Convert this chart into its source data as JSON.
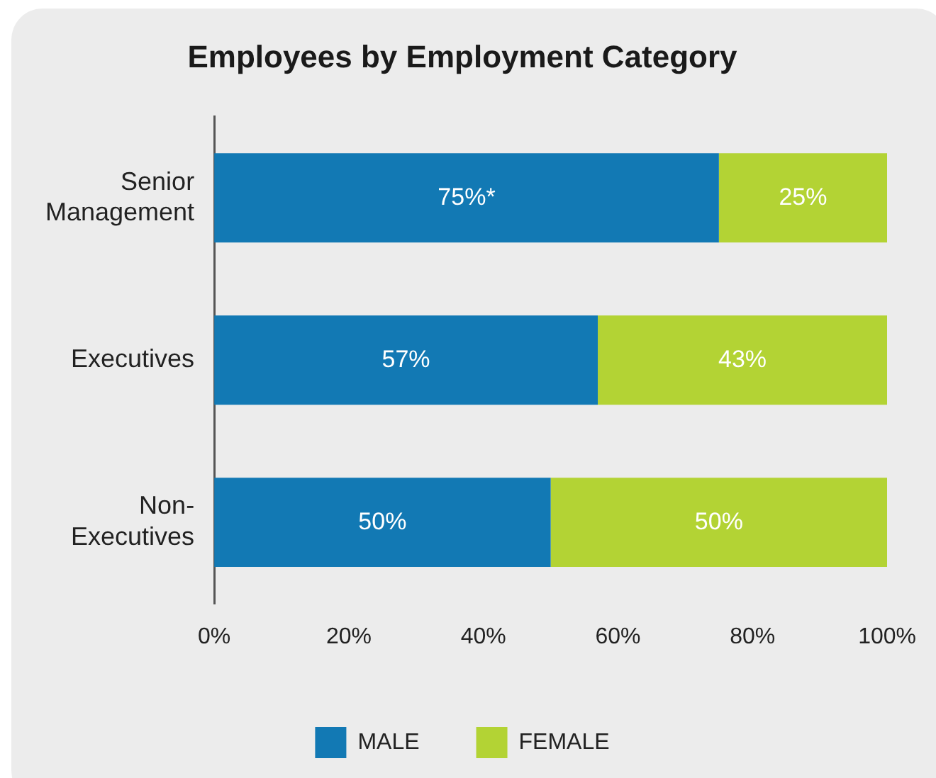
{
  "chart_data": {
    "type": "bar",
    "title": "Employees by Employment Category",
    "orientation": "horizontal",
    "stacked": true,
    "categories": [
      "Senior Management",
      "Executives",
      "Non-Executives"
    ],
    "series": [
      {
        "name": "MALE",
        "color": "#1279b4",
        "values": [
          75,
          57,
          50
        ],
        "value_labels": [
          "75%*",
          "57%",
          "50%"
        ]
      },
      {
        "name": "FEMALE",
        "color": "#b3d334",
        "values": [
          25,
          43,
          50
        ],
        "value_labels": [
          "25%",
          "43%",
          "50%"
        ]
      }
    ],
    "xlim": [
      0,
      100
    ],
    "xticks": [
      {
        "value": 0,
        "label": "0%"
      },
      {
        "value": 20,
        "label": "20%"
      },
      {
        "value": 40,
        "label": "40%"
      },
      {
        "value": 60,
        "label": "60%"
      },
      {
        "value": 80,
        "label": "80%"
      },
      {
        "value": 100,
        "label": "100%"
      }
    ],
    "grid": false,
    "legend": "bottom"
  }
}
